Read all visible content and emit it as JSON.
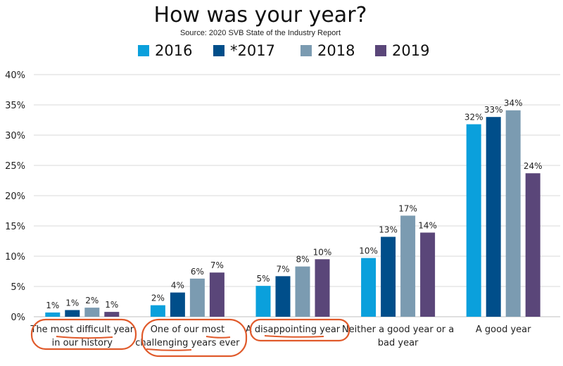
{
  "chart_data": {
    "type": "bar",
    "title": "How was your year?",
    "subtitle": "Source: 2020 SVB State of the Industry Report",
    "categories": [
      [
        "The most difficult year",
        "in our history"
      ],
      [
        "One of our most",
        "challenging years ever"
      ],
      [
        "A disappointing year"
      ],
      [
        "Neither a good year or a",
        "bad year"
      ],
      [
        "A good year"
      ]
    ],
    "series": [
      {
        "name": "2016",
        "color": "#0aa0dc",
        "values": [
          0.7,
          1.9,
          5.1,
          9.7,
          31.8
        ],
        "labels": [
          "1%",
          "2%",
          "5%",
          "10%",
          "32%"
        ]
      },
      {
        "name": "*2017",
        "color": "#004e8a",
        "values": [
          1.1,
          4.0,
          6.7,
          13.2,
          33.0
        ],
        "labels": [
          "1%",
          "4%",
          "7%",
          "13%",
          "33%"
        ]
      },
      {
        "name": "2018",
        "color": "#7b9bb1",
        "values": [
          1.5,
          6.3,
          8.3,
          16.7,
          34.1
        ],
        "labels": [
          "2%",
          "6%",
          "8%",
          "17%",
          "34%"
        ]
      },
      {
        "name": "2019",
        "color": "#5a4679",
        "values": [
          0.8,
          7.3,
          9.5,
          13.9,
          23.7
        ],
        "labels": [
          "1%",
          "7%",
          "10%",
          "14%",
          "24%"
        ]
      }
    ],
    "ylim": [
      0,
      40
    ],
    "yticks": [
      "0%",
      "5%",
      "10%",
      "15%",
      "20%",
      "25%",
      "30%",
      "35%",
      "40%"
    ],
    "grid": true,
    "legend_position": "top",
    "annotation_color": "#e05a2b"
  }
}
